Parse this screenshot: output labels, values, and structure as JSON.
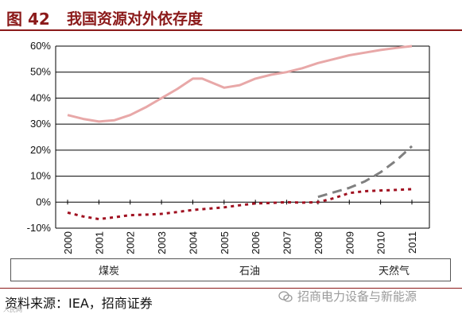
{
  "figure": {
    "number": "图 42",
    "title": "我国资源对外依存度"
  },
  "source": "资料来源：IEA，招商证券",
  "watermark": "招商电力设备与新能源",
  "corner_mark": "人民网",
  "colors": {
    "brand": "#8b1a1a",
    "coal": "#a01020",
    "oil": "#e8a8a8",
    "gas": "#808080",
    "axis": "#000000",
    "grid": "#000000"
  },
  "chart_data": {
    "type": "line",
    "title": "我国资源对外依存度",
    "xlabel": "",
    "ylabel": "",
    "ylim": [
      -10,
      60
    ],
    "yticks": [
      -10,
      0,
      10,
      20,
      30,
      40,
      50,
      60
    ],
    "ytick_labels": [
      "-10%",
      "0%",
      "10%",
      "20%",
      "30%",
      "40%",
      "50%",
      "60%"
    ],
    "categories": [
      "2000",
      "2001",
      "2002",
      "2003",
      "2004",
      "2005",
      "2006",
      "2007",
      "2008",
      "2009",
      "2010",
      "2011"
    ],
    "xlim": [
      2000,
      2011
    ],
    "grid": true,
    "legend_position": "bottom",
    "series": [
      {
        "name": "煤炭",
        "style": "dotted",
        "x": [
          2000,
          2000.5,
          2001,
          2001.5,
          2002,
          2002.5,
          2003,
          2003.5,
          2004,
          2004.5,
          2005,
          2005.5,
          2006,
          2006.5,
          2007,
          2007.5,
          2008,
          2008.5,
          2009,
          2009.5,
          2010,
          2010.5,
          2011
        ],
        "values": [
          -4,
          -5.5,
          -6.5,
          -5.8,
          -5,
          -4.8,
          -4.5,
          -3.8,
          -3,
          -2.5,
          -2,
          -1.2,
          -0.5,
          -0.3,
          0,
          -0.2,
          0,
          1.5,
          3.5,
          4.2,
          4.5,
          4.7,
          5
        ]
      },
      {
        "name": "石油",
        "style": "solid",
        "x": [
          2000,
          2000.5,
          2001,
          2001.5,
          2002,
          2002.5,
          2003,
          2003.5,
          2004,
          2004.3,
          2004.7,
          2005,
          2005.5,
          2006,
          2006.5,
          2007,
          2007.5,
          2008,
          2008.5,
          2009,
          2009.5,
          2010,
          2010.5,
          2011
        ],
        "values": [
          33.5,
          32,
          31,
          31.5,
          33.5,
          36.5,
          40,
          43.5,
          47.5,
          47.5,
          45.5,
          44,
          45,
          47.5,
          49,
          50,
          51.5,
          53.5,
          55,
          56.5,
          57.5,
          58.5,
          59.3,
          60
        ]
      },
      {
        "name": "天然气",
        "style": "dashed",
        "x": [
          2008,
          2008.5,
          2009,
          2009.5,
          2010,
          2010.5,
          2011
        ],
        "values": [
          2,
          3.8,
          5.5,
          8,
          11.5,
          16,
          21.5
        ]
      }
    ]
  }
}
